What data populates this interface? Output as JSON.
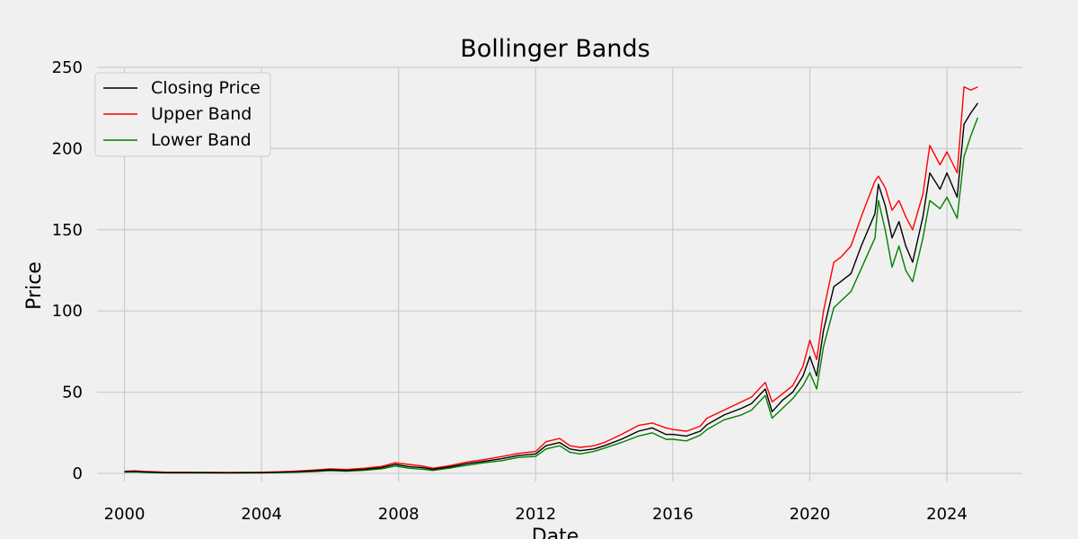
{
  "chart_data": {
    "type": "line",
    "title": "Bollinger Bands",
    "xlabel": "Date",
    "ylabel": "Price",
    "xlim": [
      1999.2,
      2026.2
    ],
    "ylim": [
      -5,
      250
    ],
    "xticks": [
      2000,
      2004,
      2008,
      2012,
      2016,
      2020,
      2024
    ],
    "xtick_labels": [
      "2000",
      "2004",
      "2008",
      "2012",
      "2016",
      "2020",
      "2024"
    ],
    "yticks": [
      0,
      50,
      100,
      150,
      200,
      250
    ],
    "ytick_labels": [
      "0",
      "50",
      "100",
      "150",
      "200",
      "250"
    ],
    "grid": true,
    "legend_position": "top-left",
    "series": [
      {
        "name": "Closing Price",
        "color": "#000000",
        "x": [
          2000.0,
          2000.3,
          2000.6,
          2000.9,
          2001.2,
          2002.0,
          2003.0,
          2004.0,
          2004.5,
          2005.0,
          2005.5,
          2006.0,
          2006.5,
          2007.0,
          2007.5,
          2007.9,
          2008.3,
          2008.7,
          2009.0,
          2009.5,
          2010.0,
          2010.5,
          2011.0,
          2011.5,
          2012.0,
          2012.3,
          2012.7,
          2013.0,
          2013.3,
          2013.7,
          2014.0,
          2014.5,
          2015.0,
          2015.4,
          2015.8,
          2016.0,
          2016.4,
          2016.8,
          2017.0,
          2017.5,
          2018.0,
          2018.3,
          2018.7,
          2018.9,
          2019.2,
          2019.5,
          2019.8,
          2020.0,
          2020.2,
          2020.4,
          2020.7,
          2020.9,
          2021.2,
          2021.5,
          2021.9,
          2022.0,
          2022.2,
          2022.4,
          2022.6,
          2022.8,
          2023.0,
          2023.3,
          2023.5,
          2023.8,
          2024.0,
          2024.3,
          2024.5,
          2024.7,
          2024.9
        ],
        "values": [
          1,
          1.2,
          0.9,
          0.7,
          0.5,
          0.5,
          0.4,
          0.5,
          0.7,
          1,
          1.5,
          2.2,
          1.8,
          2.5,
          3.5,
          5.5,
          4.2,
          3.5,
          2.5,
          4,
          6,
          7.5,
          9,
          11,
          12,
          17,
          19,
          15,
          14,
          15,
          17,
          21,
          26,
          28,
          24,
          24,
          23,
          26,
          30,
          36,
          40,
          43,
          52,
          38,
          45,
          50,
          60,
          72,
          60,
          88,
          115,
          118,
          123,
          140,
          160,
          178,
          165,
          145,
          155,
          140,
          130,
          158,
          185,
          175,
          185,
          170,
          215,
          222,
          228
        ]
      },
      {
        "name": "Upper Band",
        "color": "#ff0000",
        "x": [
          2000.0,
          2000.3,
          2000.6,
          2000.9,
          2001.2,
          2002.0,
          2003.0,
          2004.0,
          2004.5,
          2005.0,
          2005.5,
          2006.0,
          2006.5,
          2007.0,
          2007.5,
          2007.9,
          2008.3,
          2008.7,
          2009.0,
          2009.5,
          2010.0,
          2010.5,
          2011.0,
          2011.5,
          2012.0,
          2012.3,
          2012.7,
          2013.0,
          2013.3,
          2013.7,
          2014.0,
          2014.5,
          2015.0,
          2015.4,
          2015.8,
          2016.0,
          2016.4,
          2016.8,
          2017.0,
          2017.5,
          2018.0,
          2018.3,
          2018.7,
          2018.9,
          2019.2,
          2019.5,
          2019.8,
          2020.0,
          2020.2,
          2020.4,
          2020.7,
          2020.9,
          2021.2,
          2021.5,
          2021.9,
          2022.0,
          2022.2,
          2022.4,
          2022.6,
          2022.8,
          2023.0,
          2023.3,
          2023.5,
          2023.8,
          2024.0,
          2024.3,
          2024.5,
          2024.7,
          2024.9
        ],
        "values": [
          1.3,
          1.6,
          1.2,
          1,
          0.7,
          0.7,
          0.6,
          0.7,
          1,
          1.4,
          2,
          2.8,
          2.4,
          3.2,
          4.3,
          6.5,
          5.5,
          4.5,
          3.2,
          4.8,
          7,
          8.5,
          10.3,
          12.3,
          13.5,
          19.5,
          21.5,
          17,
          16,
          17,
          19,
          24,
          29.5,
          31,
          28,
          27,
          26,
          29,
          34,
          39,
          44,
          47,
          56,
          44,
          49,
          54,
          66,
          82,
          70,
          100,
          130,
          133,
          140,
          158,
          180,
          183,
          176,
          162,
          168,
          158,
          150,
          172,
          202,
          190,
          198,
          185,
          238,
          236,
          238
        ]
      },
      {
        "name": "Lower Band",
        "color": "#008000",
        "x": [
          2000.0,
          2000.3,
          2000.6,
          2000.9,
          2001.2,
          2002.0,
          2003.0,
          2004.0,
          2004.5,
          2005.0,
          2005.5,
          2006.0,
          2006.5,
          2007.0,
          2007.5,
          2007.9,
          2008.3,
          2008.7,
          2009.0,
          2009.5,
          2010.0,
          2010.5,
          2011.0,
          2011.5,
          2012.0,
          2012.3,
          2012.7,
          2013.0,
          2013.3,
          2013.7,
          2014.0,
          2014.5,
          2015.0,
          2015.4,
          2015.8,
          2016.0,
          2016.4,
          2016.8,
          2017.0,
          2017.5,
          2018.0,
          2018.3,
          2018.7,
          2018.9,
          2019.2,
          2019.5,
          2019.8,
          2020.0,
          2020.2,
          2020.4,
          2020.7,
          2020.9,
          2021.2,
          2021.5,
          2021.9,
          2022.0,
          2022.2,
          2022.4,
          2022.6,
          2022.8,
          2023.0,
          2023.3,
          2023.5,
          2023.8,
          2024.0,
          2024.3,
          2024.5,
          2024.7,
          2024.9
        ],
        "values": [
          0.8,
          0.9,
          0.6,
          0.4,
          0.3,
          0.3,
          0.2,
          0.3,
          0.5,
          0.7,
          1.1,
          1.7,
          1.3,
          1.9,
          2.8,
          4.5,
          3.2,
          2.6,
          1.8,
          3.3,
          5,
          6.6,
          7.8,
          9.8,
          10.5,
          15,
          17,
          13,
          12,
          13.5,
          15.5,
          19,
          23,
          25,
          21,
          21,
          20,
          23.5,
          27,
          33,
          36,
          39,
          48,
          34,
          40,
          46,
          54,
          62,
          52,
          78,
          102,
          106,
          112,
          126,
          145,
          168,
          150,
          127,
          140,
          125,
          118,
          145,
          168,
          163,
          170,
          157,
          195,
          208,
          219
        ]
      }
    ]
  }
}
